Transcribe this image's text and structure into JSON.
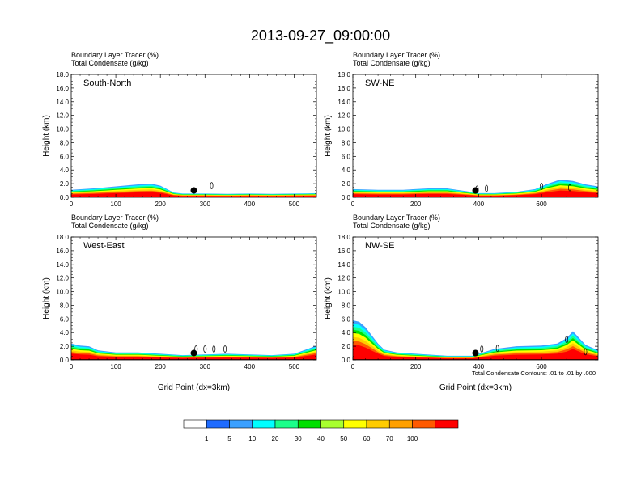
{
  "page": {
    "title": "2013-09-27_09:00:00",
    "footnote": "Total Condensate Contours: .01 to .01 by .000"
  },
  "colorbar": {
    "colors": [
      "#ffffff",
      "#1e6bff",
      "#3aa0ff",
      "#00ffff",
      "#1aff8a",
      "#00e000",
      "#a8ff2e",
      "#ffff00",
      "#ffcc00",
      "#ffa000",
      "#ff5a00",
      "#ff0000"
    ],
    "labels": [
      "1",
      "5",
      "10",
      "20",
      "30",
      "40",
      "50",
      "60",
      "70",
      "100"
    ]
  },
  "chart_data": [
    {
      "type": "area",
      "name": "South-North",
      "subtitle1": "Boundary Layer Tracer   (%)",
      "subtitle2": "Total Condensate   (g/kg)",
      "xlabel": "",
      "ylabel": "Height (km)",
      "xlim": [
        0,
        550
      ],
      "ylim": [
        0,
        18
      ],
      "xticks": [
        "0",
        "100",
        "200",
        "300",
        "400",
        "500"
      ],
      "xtick_values": [
        0,
        100,
        200,
        300,
        400,
        500
      ],
      "yticks": [
        "0.0",
        "2.0",
        "4.0",
        "6.0",
        "8.0",
        "10.0",
        "12.0",
        "14.0",
        "16.0",
        "18.0"
      ],
      "marker": {
        "x": 275,
        "y": 1.0
      },
      "profile": {
        "x": [
          0,
          50,
          100,
          150,
          180,
          200,
          215,
          230,
          250,
          300,
          350,
          400,
          450,
          500,
          550
        ],
        "top": [
          1.1,
          1.3,
          1.6,
          1.9,
          2.0,
          1.7,
          1.2,
          0.7,
          0.55,
          0.55,
          0.5,
          0.55,
          0.5,
          0.55,
          0.6
        ]
      },
      "contours": [
        {
          "x": 315,
          "y": 1.7
        }
      ]
    },
    {
      "type": "area",
      "name": "SW-NE",
      "subtitle1": "Boundary Layer Tracer   (%)",
      "subtitle2": "Total Condensate   (g/kg)",
      "xlabel": "",
      "ylabel": "Height (km)",
      "xlim": [
        0,
        780
      ],
      "ylim": [
        0,
        18
      ],
      "xticks": [
        "0",
        "200",
        "400",
        "600"
      ],
      "xtick_values": [
        0,
        200,
        400,
        600
      ],
      "yticks": [
        "0.0",
        "2.0",
        "4.0",
        "6.0",
        "8.0",
        "10.0",
        "12.0",
        "14.0",
        "16.0",
        "18.0"
      ],
      "marker": {
        "x": 390,
        "y": 1.0
      },
      "profile": {
        "x": [
          0,
          80,
          160,
          240,
          300,
          360,
          400,
          450,
          520,
          580,
          620,
          660,
          700,
          740,
          780
        ],
        "top": [
          1.2,
          1.1,
          1.1,
          1.3,
          1.3,
          0.9,
          0.6,
          0.6,
          0.8,
          1.2,
          2.0,
          2.6,
          2.4,
          1.9,
          1.6
        ]
      },
      "contours": [
        {
          "x": 395,
          "y": 1.2
        },
        {
          "x": 425,
          "y": 1.3
        },
        {
          "x": 600,
          "y": 1.6
        },
        {
          "x": 690,
          "y": 1.4
        }
      ]
    },
    {
      "type": "area",
      "name": "West-East",
      "subtitle1": "Boundary Layer Tracer   (%)",
      "subtitle2": "Total Condensate   (g/kg)",
      "xlabel": "Grid Point (dx=3km)",
      "ylabel": "Height (km)",
      "xlim": [
        0,
        550
      ],
      "ylim": [
        0,
        18
      ],
      "xticks": [
        "0",
        "100",
        "200",
        "300",
        "400",
        "500"
      ],
      "xtick_values": [
        0,
        100,
        200,
        300,
        400,
        500
      ],
      "yticks": [
        "0.0",
        "2.0",
        "4.0",
        "6.0",
        "8.0",
        "10.0",
        "12.0",
        "14.0",
        "16.0",
        "18.0"
      ],
      "marker": {
        "x": 275,
        "y": 1.0
      },
      "profile": {
        "x": [
          0,
          20,
          40,
          60,
          100,
          150,
          200,
          250,
          300,
          350,
          400,
          450,
          500,
          530,
          550
        ],
        "top": [
          2.4,
          2.1,
          2.0,
          1.4,
          1.1,
          1.1,
          0.9,
          0.7,
          0.8,
          0.9,
          0.8,
          0.7,
          0.9,
          1.6,
          2.1
        ]
      },
      "contours": [
        {
          "x": 280,
          "y": 1.6
        },
        {
          "x": 300,
          "y": 1.6
        },
        {
          "x": 320,
          "y": 1.6
        },
        {
          "x": 345,
          "y": 1.6
        }
      ]
    },
    {
      "type": "area",
      "name": "NW-SE",
      "subtitle1": "Boundary Layer Tracer   (%)",
      "subtitle2": "Total Condensate   (g/kg)",
      "xlabel": "Grid Point (dx=3km)",
      "ylabel": "Height (km)",
      "xlim": [
        0,
        780
      ],
      "ylim": [
        0,
        18
      ],
      "xticks": [
        "0",
        "200",
        "400",
        "600"
      ],
      "xtick_values": [
        0,
        200,
        400,
        600
      ],
      "yticks": [
        "0.0",
        "2.0",
        "4.0",
        "6.0",
        "8.0",
        "10.0",
        "12.0",
        "14.0",
        "16.0",
        "18.0"
      ],
      "marker": {
        "x": 390,
        "y": 1.0
      },
      "profile": {
        "x": [
          0,
          20,
          40,
          60,
          80,
          100,
          140,
          200,
          300,
          380,
          450,
          520,
          600,
          650,
          680,
          700,
          740,
          780
        ],
        "top": [
          5.8,
          5.6,
          4.8,
          3.6,
          2.4,
          1.5,
          1.1,
          0.9,
          0.6,
          0.6,
          1.6,
          2.0,
          2.1,
          2.4,
          3.2,
          4.2,
          2.2,
          1.4
        ]
      },
      "contours": [
        {
          "x": 410,
          "y": 1.6
        },
        {
          "x": 460,
          "y": 1.7
        },
        {
          "x": 680,
          "y": 3.0
        },
        {
          "x": 740,
          "y": 1.2
        }
      ]
    }
  ]
}
